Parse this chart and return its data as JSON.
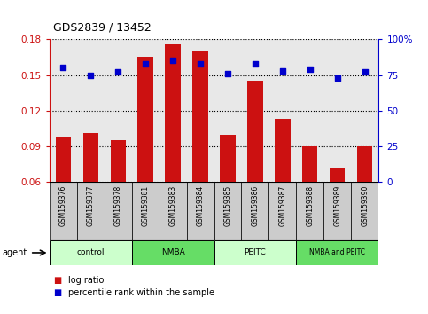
{
  "title": "GDS2839 / 13452",
  "categories": [
    "GSM159376",
    "GSM159377",
    "GSM159378",
    "GSM159381",
    "GSM159383",
    "GSM159384",
    "GSM159385",
    "GSM159386",
    "GSM159387",
    "GSM159388",
    "GSM159389",
    "GSM159390"
  ],
  "bar_values": [
    0.098,
    0.101,
    0.095,
    0.165,
    0.176,
    0.17,
    0.1,
    0.145,
    0.113,
    0.09,
    0.072,
    0.09
  ],
  "scatter_values": [
    80,
    75,
    77,
    83,
    85,
    83,
    76,
    83,
    78,
    79,
    73,
    77
  ],
  "bar_color": "#cc1111",
  "scatter_color": "#0000cc",
  "ylim_left": [
    0.06,
    0.18
  ],
  "ylim_right": [
    0,
    100
  ],
  "yticks_left": [
    0.06,
    0.09,
    0.12,
    0.15,
    0.18
  ],
  "yticks_right": [
    0,
    25,
    50,
    75,
    100
  ],
  "groups": [
    {
      "label": "control",
      "start": 0,
      "end": 3,
      "color": "#ccffcc"
    },
    {
      "label": "NMBA",
      "start": 3,
      "end": 6,
      "color": "#66dd66"
    },
    {
      "label": "PEITC",
      "start": 6,
      "end": 9,
      "color": "#ccffcc"
    },
    {
      "label": "NMBA and PEITC",
      "start": 9,
      "end": 12,
      "color": "#66dd66"
    }
  ],
  "agent_label": "agent",
  "legend_bar_label": "log ratio",
  "legend_scatter_label": "percentile rank within the sample",
  "background_color": "#ffffff",
  "plot_bg_color": "#e8e8e8",
  "xtick_bg_color": "#cccccc",
  "left_axis_color": "#cc1111",
  "right_axis_color": "#0000cc",
  "bar_base": 0.06
}
